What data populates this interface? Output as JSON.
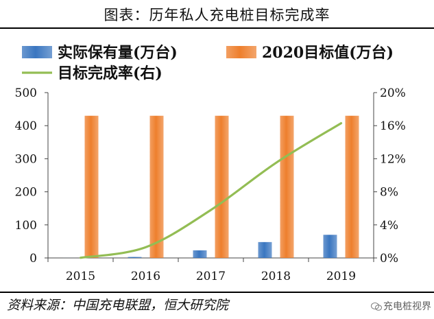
{
  "figure_title": "图表：历年私人充电桩目标完成率",
  "source": "资料来源：中国充电联盟，恒大研究院",
  "watermark": "充电桩视界",
  "colors": {
    "actual_bar": "#3a76c0",
    "target_bar": "#ee7f2d",
    "rate_line": "#93bd54",
    "axis": "#444444"
  },
  "chart_data": {
    "type": "bar",
    "categories": [
      "2015",
      "2016",
      "2017",
      "2018",
      "2019"
    ],
    "series": [
      {
        "name": "实际保有量(万台)",
        "chart": "bar",
        "axis": "left",
        "values": [
          0.1,
          3,
          23,
          48,
          70
        ]
      },
      {
        "name": "2020目标值(万台)",
        "chart": "bar",
        "axis": "left",
        "values": [
          430,
          430,
          430,
          430,
          430
        ]
      },
      {
        "name": "目标完成率(右)",
        "chart": "line",
        "axis": "right",
        "values": [
          0.0002,
          0.013,
          0.058,
          0.115,
          0.163
        ]
      }
    ],
    "y_left": {
      "min": 0,
      "max": 500,
      "ticks": [
        0,
        100,
        200,
        300,
        400,
        500
      ]
    },
    "y_right": {
      "min": 0,
      "max": 0.2,
      "ticks": [
        "0%",
        "4%",
        "8%",
        "12%",
        "16%",
        "20%"
      ]
    },
    "legend_placement": "top",
    "grid": false
  }
}
